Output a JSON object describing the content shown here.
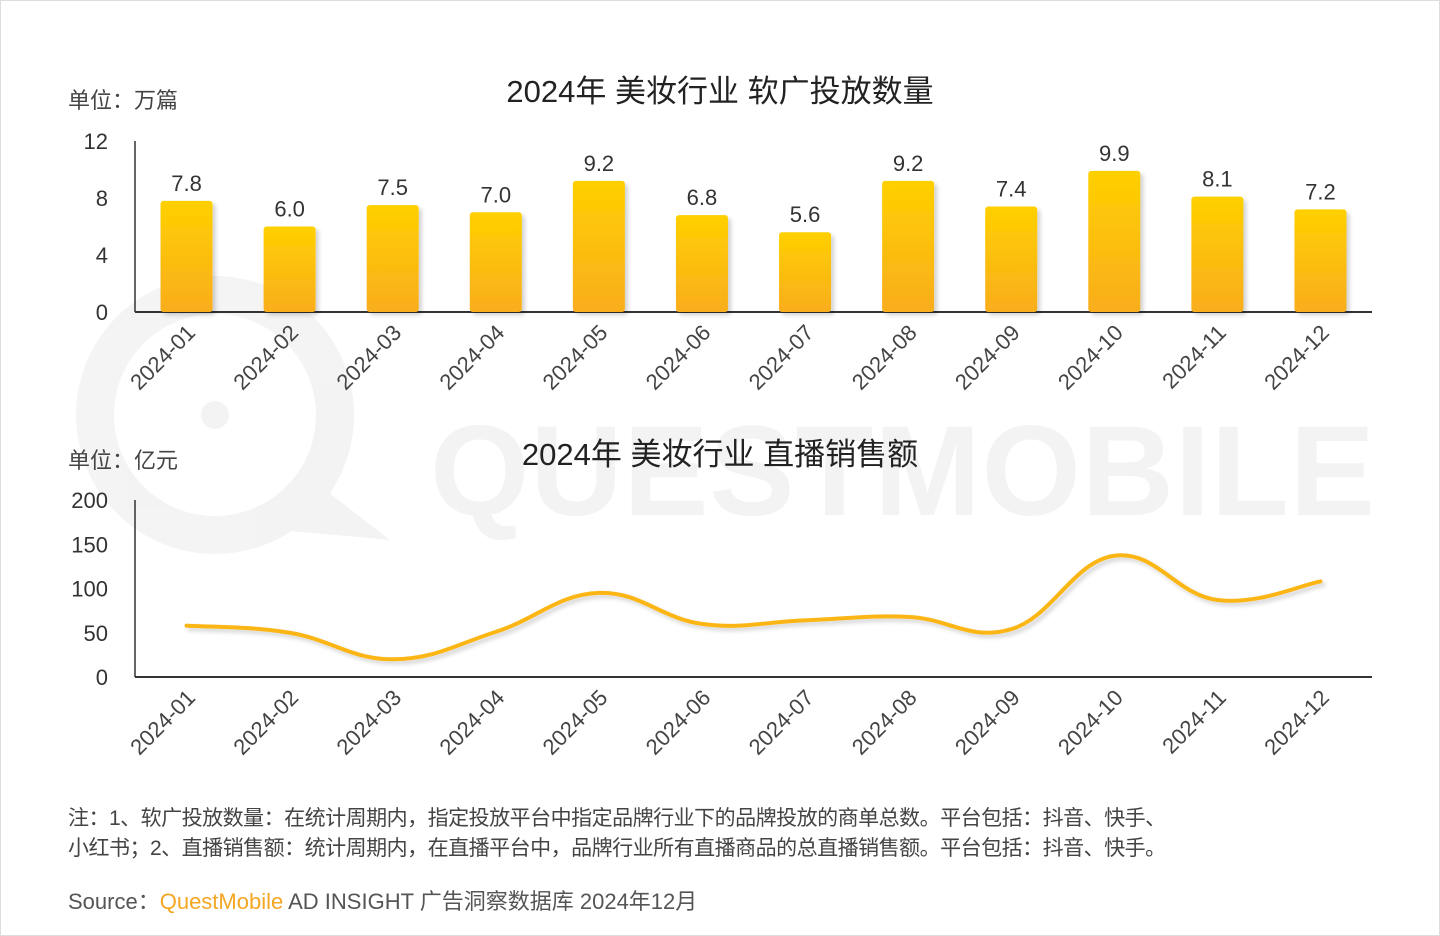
{
  "watermark": "QUESTMOBILE",
  "colors": {
    "bar_top": "#ffd000",
    "bar_bottom": "#f9ad1c",
    "line": "#fbb614",
    "axis": "#333333",
    "brand": "#f5a623"
  },
  "chart_data": [
    {
      "type": "bar",
      "title": "2024年 美妆行业 软广投放数量",
      "unit_label": "单位：万篇",
      "categories": [
        "2024-01",
        "2024-02",
        "2024-03",
        "2024-04",
        "2024-05",
        "2024-06",
        "2024-07",
        "2024-08",
        "2024-09",
        "2024-10",
        "2024-11",
        "2024-12"
      ],
      "values": [
        7.8,
        6.0,
        7.5,
        7.0,
        9.2,
        6.8,
        5.6,
        9.2,
        7.4,
        9.9,
        8.1,
        7.2
      ],
      "data_labels": [
        "7.8",
        "6.0",
        "7.5",
        "7.0",
        "9.2",
        "6.8",
        "5.6",
        "9.2",
        "7.4",
        "9.9",
        "8.1",
        "7.2"
      ],
      "yticks": [
        "0",
        "4",
        "8",
        "12"
      ],
      "ylim": [
        0,
        12
      ],
      "grid": false
    },
    {
      "type": "line",
      "title": "2024年 美妆行业 直播销售额",
      "unit_label": "单位：亿元",
      "categories": [
        "2024-01",
        "2024-02",
        "2024-03",
        "2024-04",
        "2024-05",
        "2024-06",
        "2024-07",
        "2024-08",
        "2024-09",
        "2024-10",
        "2024-11",
        "2024-12"
      ],
      "values": [
        58,
        50,
        20,
        51,
        95,
        60,
        64,
        68,
        54,
        137,
        87,
        108
      ],
      "smooth": true,
      "yticks": [
        "0",
        "50",
        "100",
        "150",
        "200"
      ],
      "ylim": [
        0,
        200
      ],
      "grid": false
    }
  ],
  "notes": {
    "line1": "注：1、软广投放数量：在统计周期内，指定投放平台中指定品牌行业下的品牌投放的商单总数。平台包括：抖音、快手、",
    "line2": "小红书；2、直播销售额：统计周期内，在直播平台中，品牌行业所有直播商品的总直播销售额。平台包括：抖音、快手。"
  },
  "source": {
    "label": "Source：",
    "brand": "QuestMobile",
    "rest": " AD INSIGHT 广告洞察数据库 2024年12月"
  }
}
